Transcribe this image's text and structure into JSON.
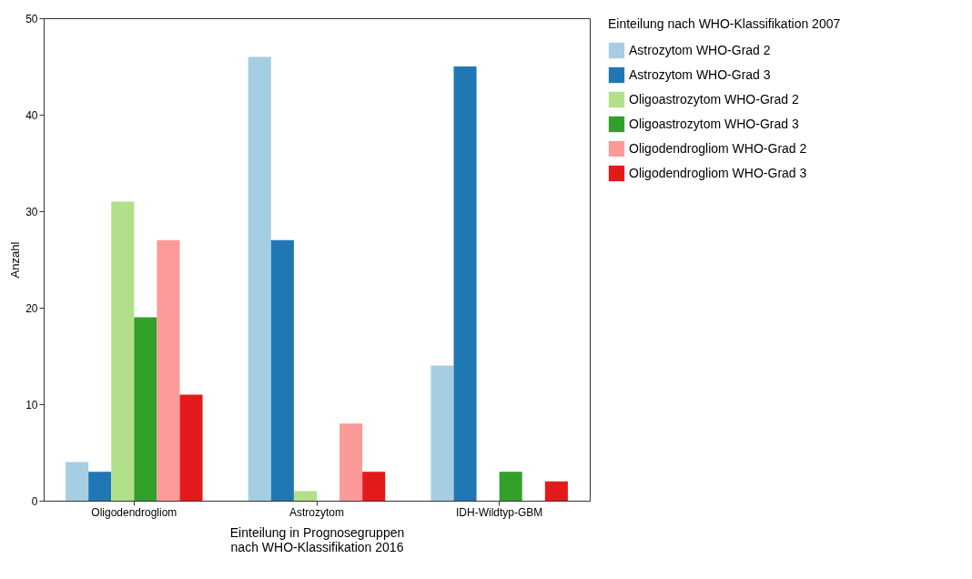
{
  "chart_data": {
    "type": "bar",
    "xlabel": "Einteilung in Prognosegruppen\nnach WHO-Klassifikation 2016",
    "ylabel": "Anzahl",
    "legend_title": "Einteilung nach WHO-Klassifikation 2007",
    "categories": [
      "Oligodendrogliom",
      "Astrozytom",
      "IDH-Wildtyp-GBM"
    ],
    "series": [
      {
        "name": "Astrozytom WHO-Grad 2",
        "color": "#a6cee3",
        "values": [
          4,
          46,
          14
        ]
      },
      {
        "name": "Astrozytom WHO-Grad 3",
        "color": "#1f78b4",
        "values": [
          3,
          27,
          45
        ]
      },
      {
        "name": "Oligoastrozytom WHO-Grad 2",
        "color": "#b2df8a",
        "values": [
          31,
          1,
          0
        ]
      },
      {
        "name": "Oligoastrozytom WHO-Grad 3",
        "color": "#33a02c",
        "values": [
          19,
          0,
          3
        ]
      },
      {
        "name": "Oligodendrogliom WHO-Grad 2",
        "color": "#fb9a99",
        "values": [
          27,
          8,
          0
        ]
      },
      {
        "name": "Oligodendrogliom WHO-Grad 3",
        "color": "#e31a1c",
        "values": [
          11,
          3,
          2
        ]
      }
    ],
    "ylim": [
      0,
      50
    ],
    "yticks": [
      0,
      10,
      20,
      30,
      40,
      50
    ],
    "grid": false,
    "legend": "top right"
  }
}
